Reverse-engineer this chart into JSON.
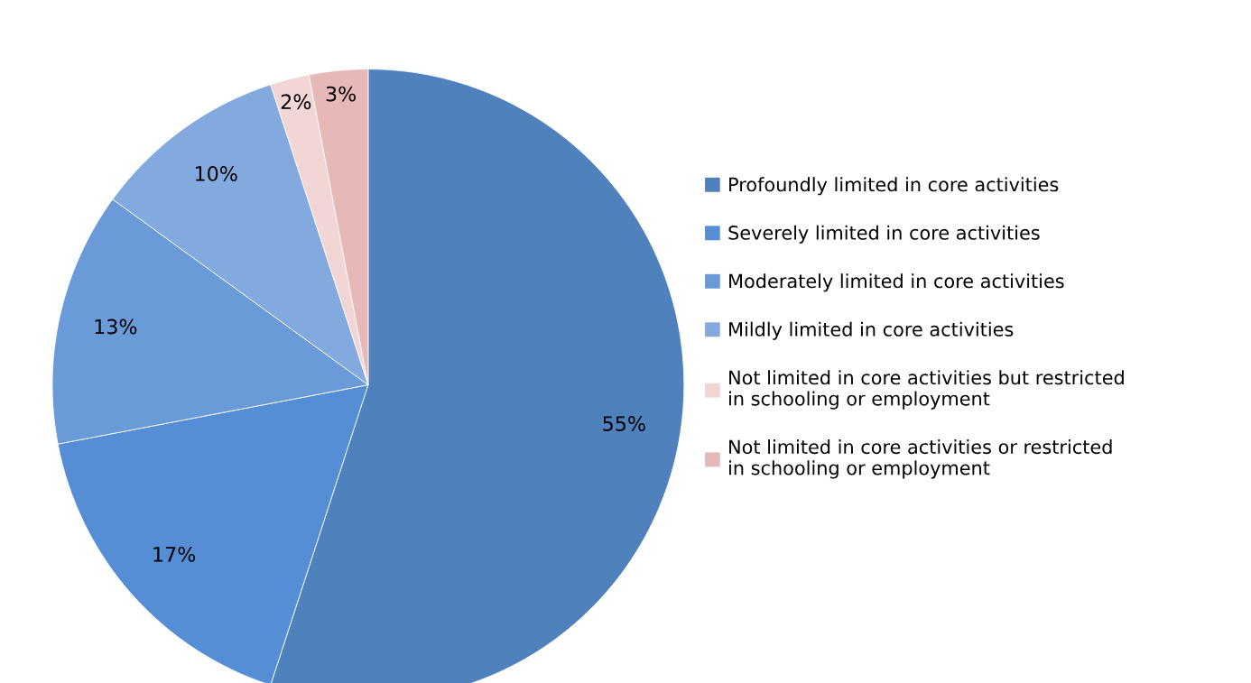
{
  "chart_data": {
    "type": "pie",
    "categories": [
      "Profoundly limited in core activities",
      "Severely limited in core activities",
      "Moderately limited in core activities",
      "Mildly limited in core activities",
      "Not limited in core activities but restricted\nin schooling or employment",
      "Not limited in core activities or restricted\nin schooling or employment"
    ],
    "values": [
      55,
      17,
      13,
      10,
      2,
      3
    ],
    "value_labels": [
      "55%",
      "17%",
      "13%",
      "10%",
      "2%",
      "3%"
    ],
    "colors": [
      "#4f81bd",
      "#558ed5",
      "#6a9bd8",
      "#83aadf",
      "#f2d5d5",
      "#e6b8b7"
    ],
    "legend": "right"
  }
}
